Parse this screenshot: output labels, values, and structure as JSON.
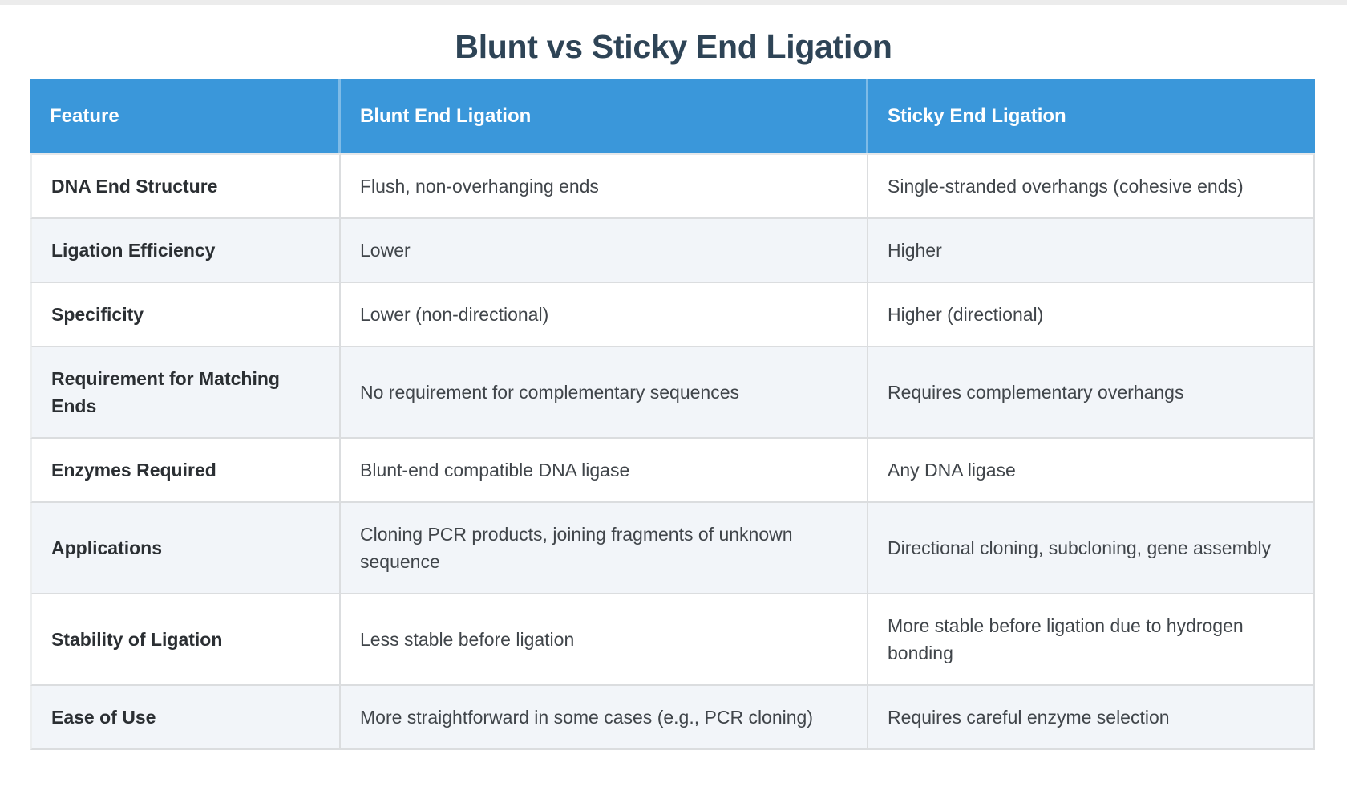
{
  "title": "Blunt vs Sticky End Ligation",
  "colors": {
    "header_bg": "#3a97da",
    "header_text": "#ffffff",
    "title_text": "#2e4456",
    "row_alt_bg": "#f2f5f9",
    "row_bg": "#ffffff",
    "border": "#dbdddf",
    "body_text": "#40454a"
  },
  "table": {
    "columns": [
      "Feature",
      "Blunt End Ligation",
      "Sticky End Ligation"
    ],
    "rows": [
      {
        "feature": "DNA End Structure",
        "blunt": "Flush, non-overhanging ends",
        "sticky": "Single-stranded overhangs (cohesive ends)"
      },
      {
        "feature": "Ligation Efficiency",
        "blunt": "Lower",
        "sticky": "Higher"
      },
      {
        "feature": "Specificity",
        "blunt": "Lower (non-directional)",
        "sticky": "Higher (directional)"
      },
      {
        "feature": "Requirement for Matching Ends",
        "blunt": "No requirement for complementary sequences",
        "sticky": "Requires complementary overhangs"
      },
      {
        "feature": "Enzymes Required",
        "blunt": "Blunt-end compatible DNA ligase",
        "sticky": "Any DNA ligase"
      },
      {
        "feature": "Applications",
        "blunt": "Cloning PCR products, joining fragments of unknown sequence",
        "sticky": "Directional cloning, subcloning, gene assembly"
      },
      {
        "feature": "Stability of Ligation",
        "blunt": "Less stable before ligation",
        "sticky": "More stable before ligation due to hydrogen bonding"
      },
      {
        "feature": "Ease of Use",
        "blunt": "More straightforward in some cases (e.g., PCR cloning)",
        "sticky": "Requires careful enzyme selection"
      }
    ]
  }
}
